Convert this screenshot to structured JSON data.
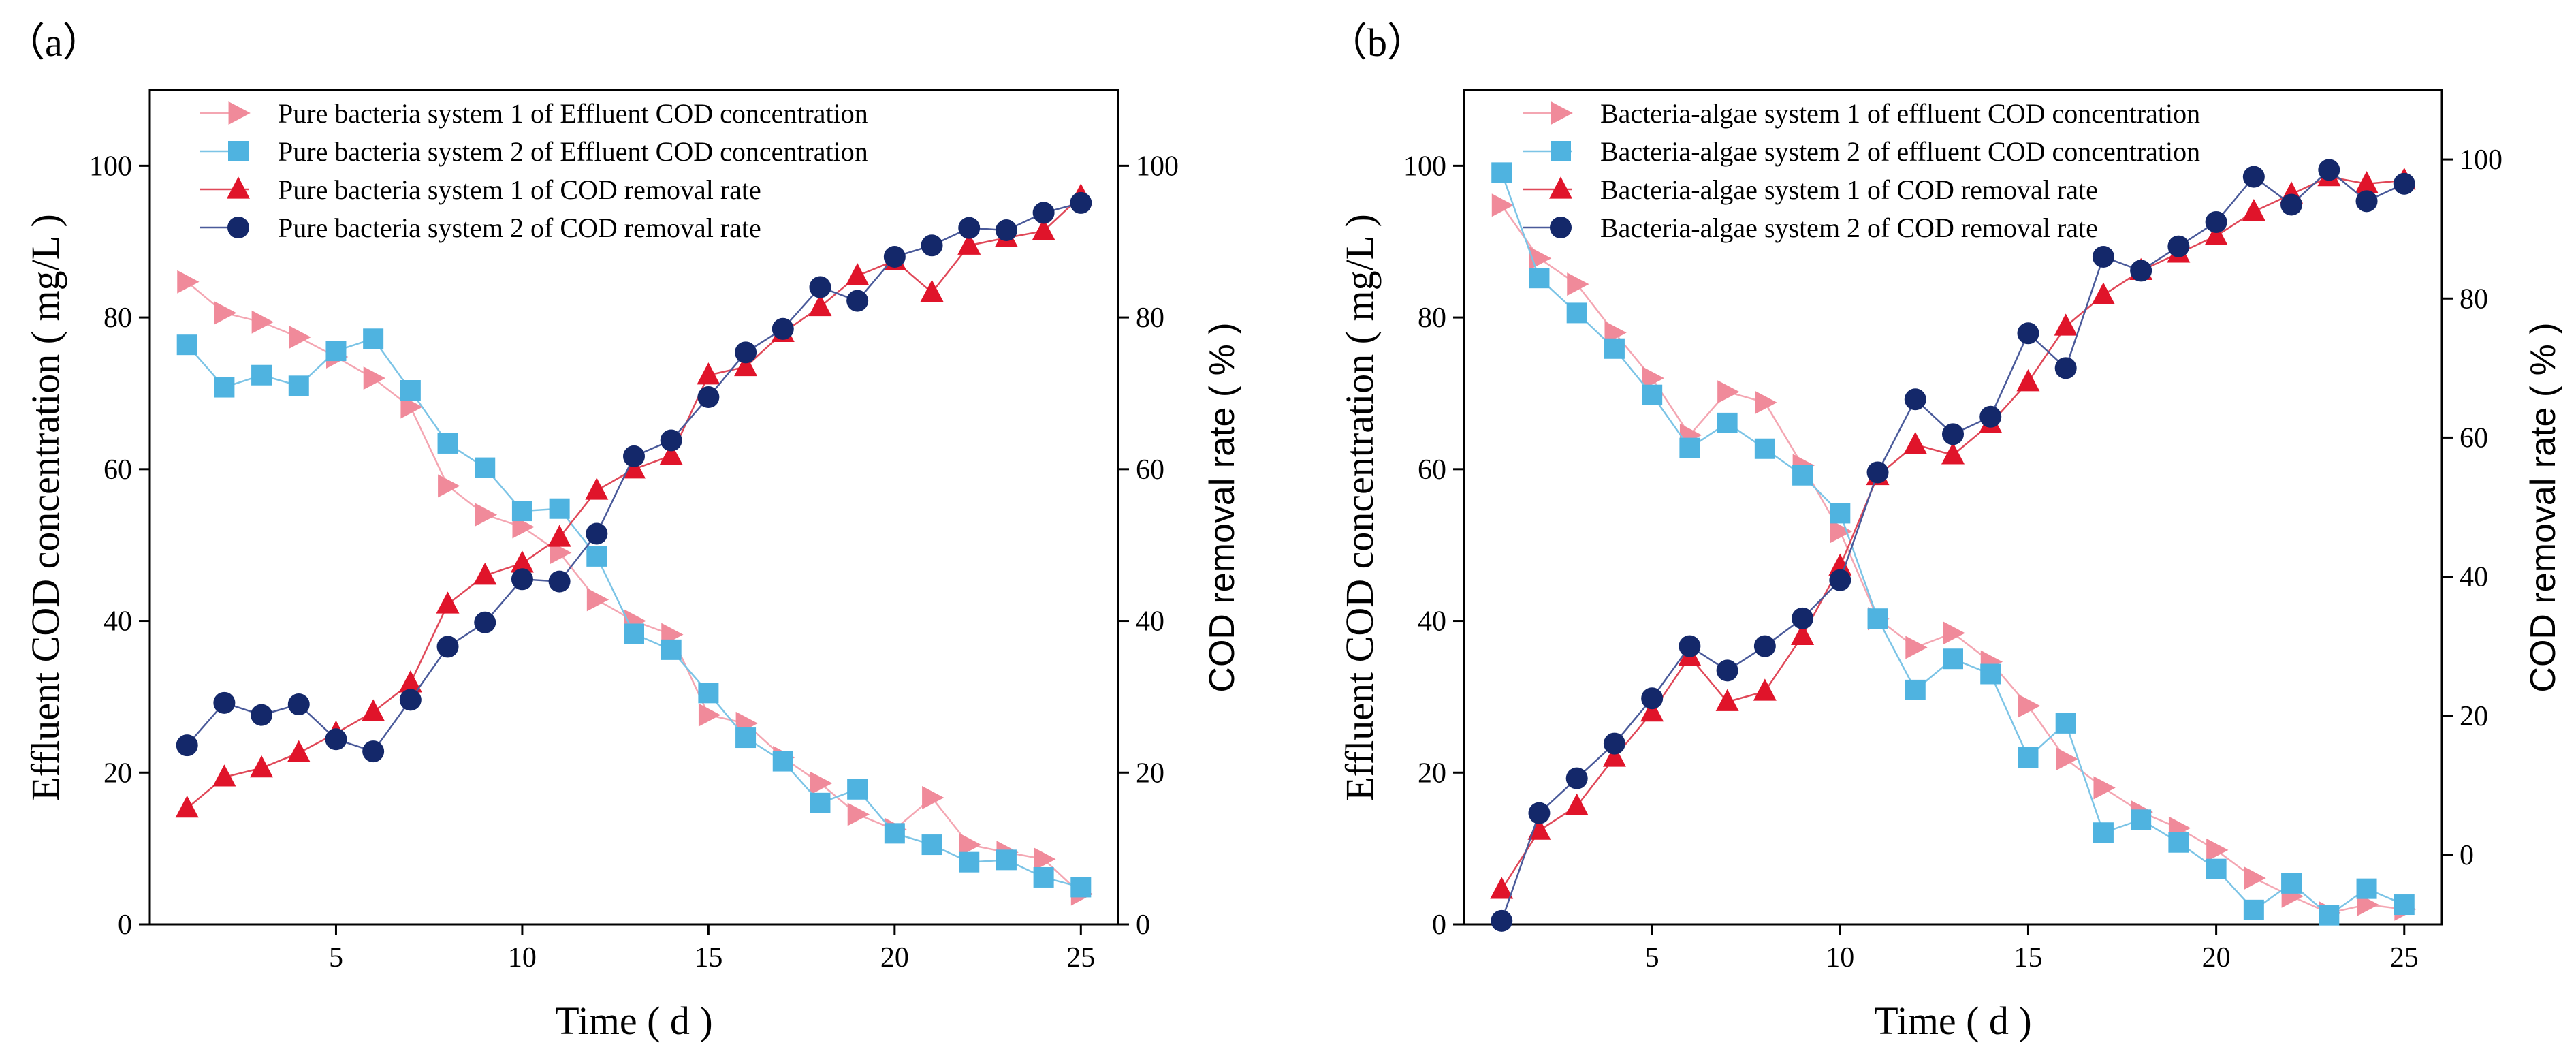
{
  "colors": {
    "pink": "#F08A9A",
    "lightblue": "#4FB3E0",
    "red": "#E0142A",
    "navy": "#14286A",
    "linePink": "#F4A6B2",
    "lineBlue": "#7CC4E6",
    "lineRed": "#E04858",
    "lineNavy": "#4A5A9A"
  },
  "chart_data": [
    {
      "type": "line",
      "panel_label": "（a）",
      "xlabel": "Time ( d )",
      "ylabel": "Effluent COD concentration ( mg/L )",
      "y2label": "COD removal rate ( % )",
      "xlim": [
        0,
        26
      ],
      "ylim": [
        0,
        110
      ],
      "y2lim": [
        0,
        110
      ],
      "xticks": [
        5,
        10,
        15,
        20,
        25
      ],
      "yticks": [
        0,
        20,
        40,
        60,
        80,
        100
      ],
      "y2ticks": [
        0,
        20,
        40,
        60,
        80,
        100
      ],
      "legend_position": "top-left",
      "x": [
        1,
        2,
        3,
        4,
        5,
        6,
        7,
        8,
        9,
        10,
        11,
        12,
        13,
        14,
        15,
        16,
        17,
        18,
        19,
        20,
        21,
        22,
        23,
        24,
        25
      ],
      "series": [
        {
          "name": "Pure bacteria system 1 of Effluent COD concentration",
          "axis": "left",
          "marker": "triangle-right",
          "color": "pink",
          "line": "linePink",
          "values": [
            84.7,
            80.6,
            79.4,
            77.4,
            74.8,
            72.0,
            68.2,
            57.8,
            54.0,
            52.4,
            49.0,
            42.8,
            40.0,
            38.2,
            27.6,
            26.5,
            22.0,
            18.6,
            14.5,
            12.5,
            16.7,
            10.5,
            9.5,
            8.6,
            4.0
          ]
        },
        {
          "name": "Pure bacteria system 2 of Effluent COD concentration",
          "axis": "left",
          "marker": "square",
          "color": "lightblue",
          "line": "lineBlue",
          "values": [
            76.4,
            70.8,
            72.4,
            71.0,
            75.6,
            77.2,
            70.4,
            63.4,
            60.2,
            54.5,
            54.8,
            48.5,
            38.3,
            36.2,
            30.5,
            24.6,
            21.5,
            16.0,
            17.8,
            12.0,
            10.5,
            8.2,
            8.5,
            6.2,
            4.9
          ]
        },
        {
          "name": "Pure bacteria system 1 of COD removal rate",
          "axis": "right",
          "marker": "triangle-up",
          "color": "red",
          "line": "lineRed",
          "values": [
            15.3,
            19.4,
            20.6,
            22.6,
            25.2,
            28.0,
            31.8,
            42.2,
            46.0,
            47.6,
            51.0,
            57.2,
            60.0,
            61.8,
            72.4,
            73.5,
            78.0,
            81.4,
            85.5,
            87.5,
            83.3,
            89.5,
            90.5,
            91.4,
            96.0
          ]
        },
        {
          "name": "Pure bacteria system 2 of COD removal rate",
          "axis": "right",
          "marker": "circle",
          "color": "navy",
          "line": "lineNavy",
          "values": [
            23.6,
            29.2,
            27.6,
            29.0,
            24.4,
            22.8,
            29.6,
            36.6,
            39.8,
            45.5,
            45.2,
            51.5,
            61.7,
            63.8,
            69.5,
            75.4,
            78.5,
            84.0,
            82.2,
            88.0,
            89.5,
            91.8,
            91.5,
            93.8,
            95.1
          ]
        }
      ]
    },
    {
      "type": "line",
      "panel_label": "（b）",
      "xlabel": "Time ( d )",
      "ylabel": "Effluent COD concentration ( mg/L )",
      "y2label": "COD removal rate ( % )",
      "xlim": [
        0,
        26
      ],
      "ylim": [
        0,
        110
      ],
      "y2lim": [
        -10,
        110
      ],
      "xticks": [
        5,
        10,
        15,
        20,
        25
      ],
      "yticks": [
        0,
        20,
        40,
        60,
        80,
        100
      ],
      "y2ticks": [
        0,
        20,
        40,
        60,
        80,
        100
      ],
      "legend_position": "top-left",
      "x": [
        1,
        2,
        3,
        4,
        5,
        6,
        7,
        8,
        9,
        10,
        11,
        12,
        13,
        14,
        15,
        16,
        17,
        18,
        19,
        20,
        21,
        22,
        23,
        24,
        25
      ],
      "series": [
        {
          "name": "Bacteria-algae system 1 of effluent COD concentration",
          "axis": "left",
          "marker": "triangle-right",
          "color": "pink",
          "line": "linePink",
          "values": [
            94.8,
            87.8,
            84.4,
            78.0,
            72.0,
            64.5,
            70.2,
            68.8,
            60.5,
            51.8,
            40.3,
            36.5,
            38.4,
            34.6,
            28.8,
            21.8,
            18.0,
            14.8,
            12.7,
            9.8,
            6.1,
            3.7,
            1.5,
            2.6,
            2.0
          ]
        },
        {
          "name": "Bacteria-algae system 2 of effluent COD concentration",
          "axis": "left",
          "marker": "square",
          "color": "lightblue",
          "line": "lineBlue",
          "values": [
            99.1,
            85.2,
            80.6,
            75.9,
            69.8,
            62.8,
            66.1,
            62.7,
            59.2,
            54.2,
            40.3,
            30.9,
            35.0,
            33.0,
            22.0,
            26.5,
            12.1,
            13.8,
            10.8,
            7.3,
            1.9,
            5.4,
            1.2,
            4.7,
            2.6
          ]
        },
        {
          "name": "Bacteria-algae system 1 of COD removal rate",
          "axis": "right",
          "marker": "triangle-up",
          "color": "red",
          "line": "lineRed",
          "values": [
            -5.0,
            3.5,
            7.0,
            14.0,
            20.5,
            28.5,
            22.0,
            23.5,
            31.5,
            41.5,
            54.5,
            59.0,
            57.5,
            62.0,
            68.0,
            76.0,
            80.5,
            84.0,
            86.5,
            89.0,
            92.5,
            95.0,
            97.5,
            96.5,
            97.0
          ]
        },
        {
          "name": "Bacteria-algae system 2 of COD removal rate",
          "axis": "right",
          "marker": "circle",
          "color": "navy",
          "line": "lineNavy",
          "values": [
            -9.5,
            6.0,
            11.0,
            16.0,
            22.5,
            30.0,
            26.5,
            30.0,
            34.0,
            39.5,
            55.0,
            65.5,
            60.5,
            63.0,
            75.0,
            70.0,
            86.0,
            84.0,
            87.5,
            91.0,
            97.5,
            93.5,
            98.5,
            94.0,
            96.5
          ]
        }
      ]
    }
  ]
}
